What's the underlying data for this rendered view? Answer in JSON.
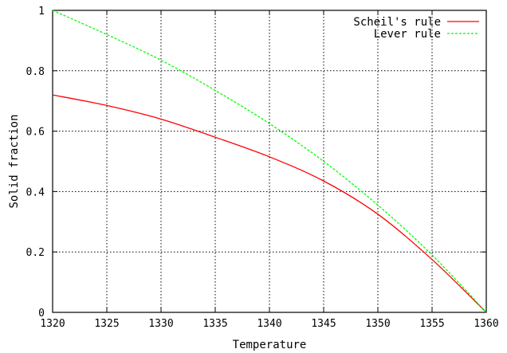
{
  "chart_data": {
    "type": "line",
    "title": "",
    "xlabel": "Temperature",
    "ylabel": "Solid fraction",
    "xlim": [
      1320,
      1360
    ],
    "ylim": [
      0,
      1
    ],
    "xticks": [
      1320,
      1325,
      1330,
      1335,
      1340,
      1345,
      1350,
      1355,
      1360
    ],
    "yticks": [
      0,
      0.2,
      0.4,
      0.6,
      0.8,
      1
    ],
    "ytick_labels": [
      "0",
      "0.2",
      "0.4",
      "0.6",
      "0.8",
      "1"
    ],
    "grid": true,
    "legend_position": "top-right",
    "series": [
      {
        "name": "Scheil's rule",
        "color": "#ff0000",
        "dash": "solid",
        "x": [
          1320,
          1325,
          1330,
          1335,
          1340,
          1345,
          1350,
          1355,
          1360
        ],
        "y": [
          0.72,
          0.685,
          0.64,
          0.58,
          0.515,
          0.435,
          0.325,
          0.175,
          0.0
        ]
      },
      {
        "name": "Lever rule",
        "color": "#00ff00",
        "dash": "dashed",
        "x": [
          1320,
          1325,
          1330,
          1335,
          1340,
          1345,
          1350,
          1355,
          1360
        ],
        "y": [
          1.0,
          0.92,
          0.835,
          0.735,
          0.625,
          0.5,
          0.355,
          0.19,
          0.0
        ]
      }
    ]
  }
}
